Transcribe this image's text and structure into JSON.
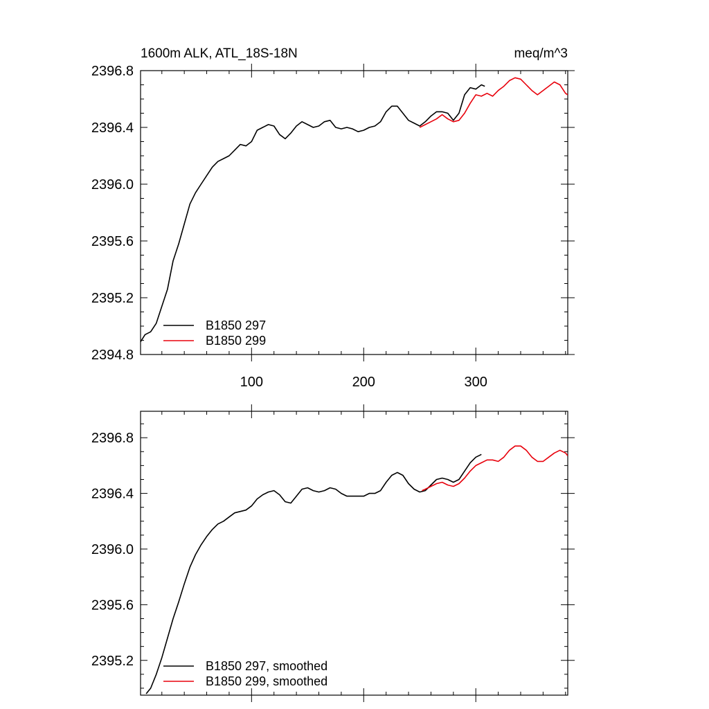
{
  "header": {
    "left_title": "1600m ALK, ATL_18S-18N",
    "right_title": "meq/m^3"
  },
  "chart_data": [
    {
      "type": "line",
      "xlim": [
        1,
        382
      ],
      "ylim": [
        2394.8,
        2396.8
      ],
      "x_ticks": [
        100,
        200,
        300
      ],
      "x_tick_labels": [
        "100",
        "200",
        "300"
      ],
      "y_ticks": [
        2394.8,
        2395.2,
        2395.6,
        2396.0,
        2396.4,
        2396.8
      ],
      "y_tick_labels": [
        "2394.8",
        "2395.2",
        "2395.6",
        "2396.0",
        "2396.4",
        "2396.8"
      ],
      "legend_position": "bottom-left",
      "series": [
        {
          "name": "B1850 297",
          "color": "#000000",
          "x": [
            1,
            5,
            10,
            15,
            20,
            25,
            30,
            35,
            40,
            45,
            50,
            55,
            60,
            65,
            70,
            75,
            80,
            85,
            90,
            95,
            100,
            105,
            110,
            115,
            120,
            125,
            130,
            135,
            140,
            145,
            150,
            155,
            160,
            165,
            170,
            175,
            180,
            185,
            190,
            195,
            200,
            205,
            210,
            215,
            220,
            225,
            230,
            235,
            240,
            245,
            250,
            255,
            260,
            265,
            270,
            275,
            280,
            285,
            290,
            295,
            300,
            305,
            308
          ],
          "y": [
            2394.89,
            2394.94,
            2394.96,
            2395.02,
            2395.14,
            2395.26,
            2395.46,
            2395.58,
            2395.72,
            2395.86,
            2395.94,
            2396.0,
            2396.06,
            2396.12,
            2396.16,
            2396.18,
            2396.2,
            2396.24,
            2396.28,
            2396.27,
            2396.3,
            2396.38,
            2396.4,
            2396.42,
            2396.41,
            2396.35,
            2396.32,
            2396.36,
            2396.41,
            2396.44,
            2396.42,
            2396.4,
            2396.41,
            2396.44,
            2396.45,
            2396.4,
            2396.39,
            2396.4,
            2396.39,
            2396.37,
            2396.38,
            2396.4,
            2396.41,
            2396.44,
            2396.51,
            2396.55,
            2396.55,
            2396.5,
            2396.45,
            2396.43,
            2396.41,
            2396.44,
            2396.48,
            2396.51,
            2396.51,
            2396.5,
            2396.45,
            2396.5,
            2396.63,
            2396.68,
            2396.67,
            2396.7,
            2396.69
          ]
        },
        {
          "name": "B1850 299",
          "color": "#e8000b",
          "x": [
            250,
            255,
            260,
            265,
            270,
            275,
            280,
            285,
            290,
            295,
            300,
            305,
            310,
            315,
            320,
            325,
            330,
            335,
            340,
            345,
            350,
            355,
            360,
            365,
            370,
            375,
            380,
            382
          ],
          "y": [
            2396.4,
            2396.42,
            2396.44,
            2396.46,
            2396.49,
            2396.46,
            2396.44,
            2396.45,
            2396.5,
            2396.57,
            2396.63,
            2396.62,
            2396.64,
            2396.62,
            2396.66,
            2396.69,
            2396.73,
            2396.75,
            2396.74,
            2396.7,
            2396.66,
            2396.63,
            2396.66,
            2396.69,
            2396.72,
            2396.7,
            2396.64,
            2396.63
          ]
        }
      ]
    },
    {
      "type": "line",
      "xlim": [
        1,
        382
      ],
      "ylim": [
        2394.95,
        2396.99
      ],
      "x_ticks": [
        100,
        200,
        300
      ],
      "x_tick_labels": [
        "",
        "",
        ""
      ],
      "y_ticks": [
        2395.2,
        2395.6,
        2396.0,
        2396.4,
        2396.8
      ],
      "y_tick_labels": [
        "2395.2",
        "2395.6",
        "2396.0",
        "2396.4",
        "2396.8"
      ],
      "legend_position": "bottom-left",
      "series": [
        {
          "name": "B1850 297, smoothed",
          "color": "#000000",
          "x": [
            6,
            10,
            15,
            20,
            25,
            30,
            35,
            40,
            45,
            50,
            55,
            60,
            65,
            70,
            75,
            80,
            85,
            90,
            95,
            100,
            105,
            110,
            115,
            120,
            125,
            130,
            135,
            140,
            145,
            150,
            155,
            160,
            165,
            170,
            175,
            180,
            185,
            190,
            195,
            200,
            205,
            210,
            215,
            220,
            225,
            230,
            235,
            240,
            245,
            250,
            255,
            260,
            265,
            270,
            275,
            280,
            285,
            290,
            295,
            300,
            305
          ],
          "y": [
            2394.96,
            2395.0,
            2395.1,
            2395.22,
            2395.36,
            2395.5,
            2395.62,
            2395.75,
            2395.87,
            2395.96,
            2396.03,
            2396.09,
            2396.14,
            2396.18,
            2396.2,
            2396.23,
            2396.26,
            2396.27,
            2396.28,
            2396.31,
            2396.36,
            2396.39,
            2396.41,
            2396.42,
            2396.39,
            2396.34,
            2396.33,
            2396.38,
            2396.43,
            2396.44,
            2396.42,
            2396.41,
            2396.42,
            2396.44,
            2396.43,
            2396.4,
            2396.38,
            2396.38,
            2396.38,
            2396.38,
            2396.4,
            2396.4,
            2396.42,
            2396.48,
            2396.53,
            2396.55,
            2396.53,
            2396.47,
            2396.43,
            2396.41,
            2396.42,
            2396.46,
            2396.5,
            2396.51,
            2396.5,
            2396.48,
            2396.5,
            2396.56,
            2396.62,
            2396.66,
            2396.68
          ]
        },
        {
          "name": "B1850 299, smoothed",
          "color": "#e8000b",
          "x": [
            252,
            255,
            260,
            265,
            270,
            275,
            280,
            285,
            290,
            295,
            300,
            305,
            310,
            315,
            320,
            325,
            330,
            335,
            340,
            345,
            350,
            355,
            360,
            365,
            370,
            375,
            380,
            382
          ],
          "y": [
            2396.42,
            2396.43,
            2396.45,
            2396.47,
            2396.48,
            2396.46,
            2396.45,
            2396.47,
            2396.51,
            2396.56,
            2396.6,
            2396.62,
            2396.64,
            2396.64,
            2396.63,
            2396.66,
            2396.71,
            2396.74,
            2396.74,
            2396.71,
            2396.66,
            2396.63,
            2396.63,
            2396.66,
            2396.69,
            2396.71,
            2396.69,
            2396.67
          ]
        }
      ]
    }
  ]
}
